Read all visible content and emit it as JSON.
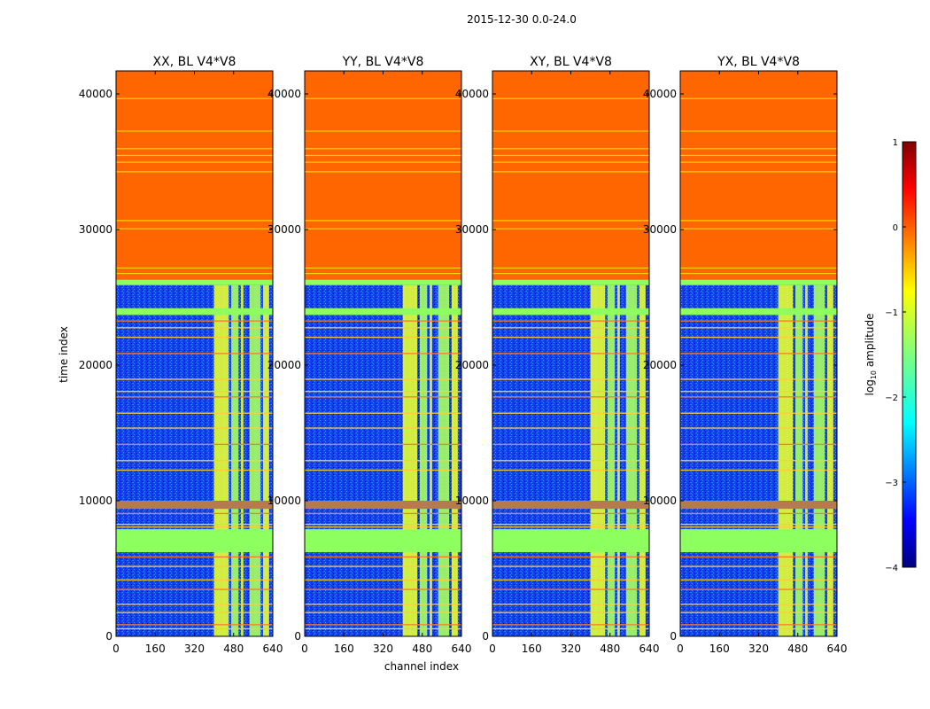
{
  "figure": {
    "suptitle": "2015-12-30 0.0-24.0",
    "ylabel": "time index",
    "xlabel": "channel index"
  },
  "chart_data": [
    {
      "type": "heatmap",
      "title": "XX, BL V4*V8",
      "xlim": [
        0,
        640
      ],
      "ylim": [
        0,
        41700
      ],
      "xticks": [
        "0",
        "160",
        "320",
        "480",
        "640"
      ],
      "yticks": [
        "0",
        "10000",
        "20000",
        "30000",
        "40000"
      ],
      "y_tick_values": [
        0,
        10000,
        20000,
        30000,
        40000
      ],
      "x_tick_values": [
        0,
        160,
        320,
        480,
        640
      ]
    },
    {
      "type": "heatmap",
      "title": "YY, BL V4*V8",
      "xlim": [
        0,
        640
      ],
      "ylim": [
        0,
        41700
      ],
      "xticks": [
        "0",
        "160",
        "320",
        "480",
        "640"
      ],
      "yticks": [
        "0",
        "10000",
        "20000",
        "30000",
        "40000"
      ],
      "y_tick_values": [
        0,
        10000,
        20000,
        30000,
        40000
      ],
      "x_tick_values": [
        0,
        160,
        320,
        480,
        640
      ]
    },
    {
      "type": "heatmap",
      "title": "XY, BL V4*V8",
      "xlim": [
        0,
        640
      ],
      "ylim": [
        0,
        41700
      ],
      "xticks": [
        "0",
        "160",
        "320",
        "480",
        "640"
      ],
      "yticks": [
        "0",
        "10000",
        "20000",
        "30000",
        "40000"
      ],
      "y_tick_values": [
        0,
        10000,
        20000,
        30000,
        40000
      ],
      "x_tick_values": [
        0,
        160,
        320,
        480,
        640
      ]
    },
    {
      "type": "heatmap",
      "title": "YX, BL V4*V8",
      "xlim": [
        0,
        640
      ],
      "ylim": [
        0,
        41700
      ],
      "xticks": [
        "0",
        "160",
        "320",
        "480",
        "640"
      ],
      "yticks": [
        "0",
        "10000",
        "20000",
        "30000",
        "40000"
      ],
      "y_tick_values": [
        0,
        10000,
        20000,
        30000,
        40000
      ],
      "x_tick_values": [
        0,
        160,
        320,
        480,
        640
      ]
    }
  ],
  "colorbar": {
    "label_prefix": "log",
    "label_sub": "10",
    "label_suffix": " amplitude",
    "range": [
      -4,
      1
    ],
    "ticks": [
      "1",
      "0",
      "−1",
      "−2",
      "−3",
      "−4"
    ],
    "tick_values": [
      1,
      0,
      -1,
      -2,
      -3,
      -4
    ],
    "colors": [
      "#00007f",
      "#0000ff",
      "#007fff",
      "#00ffff",
      "#7fff7f",
      "#ffff00",
      "#ff7f00",
      "#ff0000",
      "#7f0000"
    ]
  },
  "structure": {
    "flagged_top_start": 26300,
    "green_band_top": [
      23700,
      24200
    ],
    "green_band_mid": [
      6200,
      7900
    ],
    "brown_band": [
      9400,
      10000
    ],
    "rfi_channels": [
      [
        400,
        460
      ],
      [
        470,
        500
      ],
      [
        510,
        520
      ],
      [
        545,
        590
      ],
      [
        600,
        625
      ]
    ]
  }
}
